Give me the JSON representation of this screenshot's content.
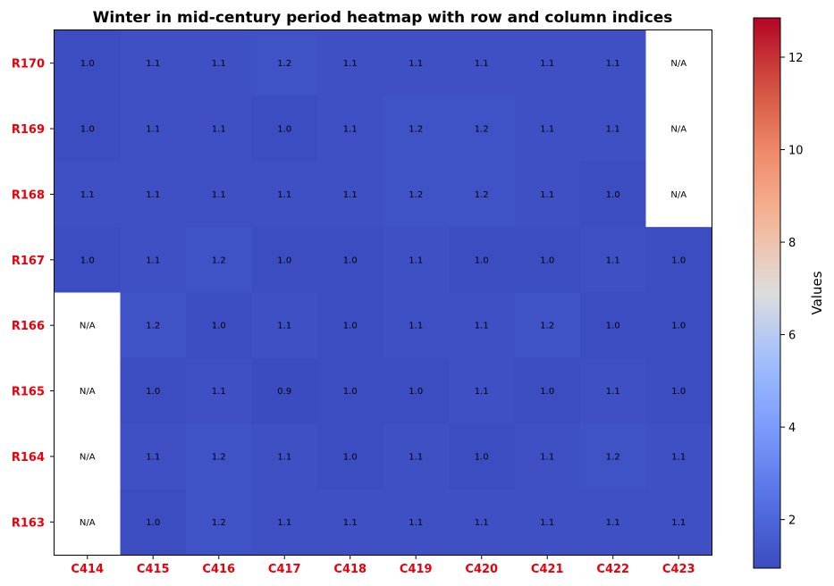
{
  "chart_data": {
    "type": "heatmap",
    "title": "Winter in mid-century period heatmap with row and column indices",
    "rows": [
      "R170",
      "R169",
      "R168",
      "R167",
      "R166",
      "R165",
      "R164",
      "R163"
    ],
    "columns": [
      "C414",
      "C415",
      "C416",
      "C417",
      "C418",
      "C419",
      "C420",
      "C421",
      "C422",
      "C423"
    ],
    "values": [
      [
        1.0,
        1.1,
        1.1,
        1.2,
        1.1,
        1.1,
        1.1,
        1.1,
        1.1,
        null
      ],
      [
        1.0,
        1.1,
        1.1,
        1.0,
        1.1,
        1.2,
        1.2,
        1.1,
        1.1,
        null
      ],
      [
        1.1,
        1.1,
        1.1,
        1.1,
        1.1,
        1.2,
        1.2,
        1.1,
        1.0,
        null
      ],
      [
        1.0,
        1.1,
        1.2,
        1.0,
        1.0,
        1.1,
        1.0,
        1.0,
        1.1,
        1.0
      ],
      [
        null,
        1.2,
        1.0,
        1.1,
        1.0,
        1.1,
        1.1,
        1.2,
        1.0,
        1.0
      ],
      [
        null,
        1.0,
        1.1,
        0.9,
        1.0,
        1.0,
        1.1,
        1.0,
        1.1,
        1.0
      ],
      [
        null,
        1.1,
        1.2,
        1.1,
        1.0,
        1.1,
        1.0,
        1.1,
        1.2,
        1.1
      ],
      [
        null,
        1.0,
        1.2,
        1.1,
        1.1,
        1.1,
        1.1,
        1.1,
        1.1,
        1.1
      ]
    ],
    "missing_label": "N/A",
    "colorscale": "coolwarm",
    "colorbar": {
      "label": "Values",
      "range": [
        0.95,
        12.85
      ],
      "ticks": [
        2,
        4,
        6,
        8,
        10,
        12
      ]
    },
    "label_color": "#e8000b",
    "grid": false
  }
}
